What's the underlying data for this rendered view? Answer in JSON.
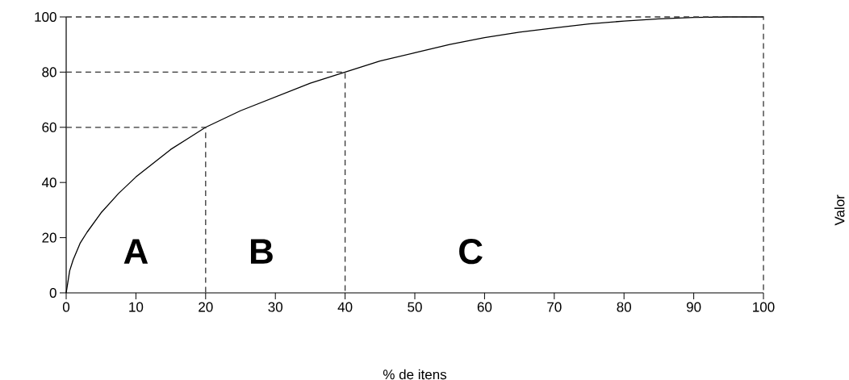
{
  "chart_data": {
    "type": "line",
    "xlabel": "% de itens",
    "ylabel": "Valor",
    "xlim": [
      0,
      100
    ],
    "ylim": [
      0,
      100
    ],
    "xticks": [
      0,
      10,
      20,
      30,
      40,
      50,
      60,
      70,
      80,
      90,
      100
    ],
    "yticks": [
      0,
      20,
      40,
      60,
      80,
      100
    ],
    "series": [
      {
        "color": "#000000",
        "line_style": "solid",
        "x": [
          0,
          0.5,
          1,
          2,
          3,
          5,
          7.5,
          10,
          12.5,
          15,
          17.5,
          20,
          25,
          30,
          35,
          40,
          45,
          50,
          55,
          60,
          65,
          70,
          75,
          80,
          85,
          90,
          95,
          100
        ],
        "values": [
          0,
          8,
          12,
          18,
          22,
          29,
          36,
          42,
          47,
          52,
          56,
          60,
          66,
          71,
          76,
          80,
          84,
          87,
          90,
          92.5,
          94.5,
          96,
          97.5,
          98.5,
          99.3,
          99.8,
          100,
          100
        ]
      },
      {
        "color": "#333333",
        "line_style": "dashed",
        "x": [
          0,
          20,
          20
        ],
        "values": [
          60,
          60,
          0
        ]
      },
      {
        "color": "#333333",
        "line_style": "dashed",
        "x": [
          0,
          40,
          40
        ],
        "values": [
          80,
          80,
          0
        ]
      }
    ],
    "annotations": [
      "A",
      "B",
      "C"
    ]
  }
}
